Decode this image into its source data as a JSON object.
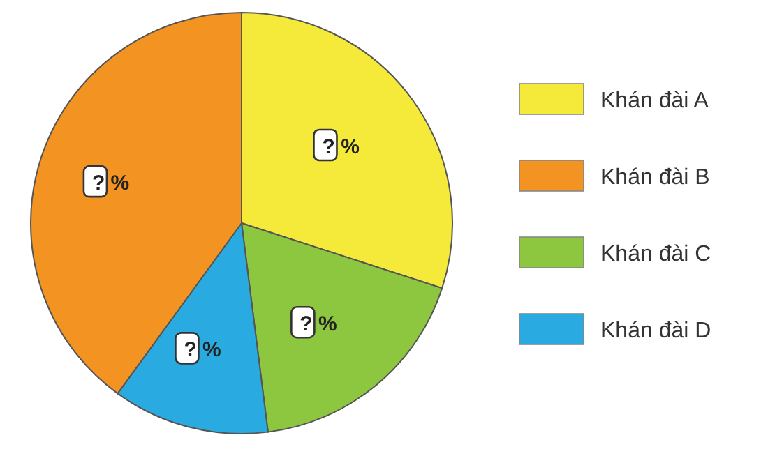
{
  "chart_data": {
    "type": "pie",
    "categories": [
      "Khán đài A",
      "Khán đài B",
      "Khán đài C",
      "Khán đài D"
    ],
    "values": [
      30,
      40,
      18,
      12
    ],
    "colors": [
      "#f5ea3a",
      "#f39321",
      "#8dc63f",
      "#29abe2"
    ],
    "value_labels": [
      "? %",
      "? %",
      "? %",
      "? %"
    ],
    "legend": "right"
  }
}
